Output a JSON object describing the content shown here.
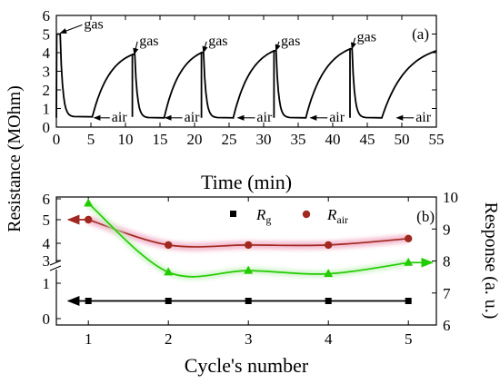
{
  "y_axis_title": "Resistance (MOhm)",
  "chart_data": [
    {
      "id": "a",
      "panel_label": "(a)",
      "type": "line",
      "xlabel": "Time (min)",
      "xlim": [
        0,
        55
      ],
      "ylim": [
        0,
        6
      ],
      "xticks": [
        "0",
        "5",
        "10",
        "15",
        "20",
        "25",
        "30",
        "35",
        "40",
        "45",
        "50",
        "55"
      ],
      "yticks": [
        "0",
        "1",
        "2",
        "3",
        "4",
        "5",
        "6"
      ],
      "color": "#000000",
      "cycles": [
        {
          "gas_on": 0.0,
          "peak": 5.0,
          "air_on": 0.55,
          "gas_next": 11.0,
          "base": 0.55
        },
        {
          "gas_on": 11.0,
          "peak": 3.9,
          "air_on": 11.35,
          "gas_next": 21.0,
          "base": 0.5
        },
        {
          "gas_on": 21.0,
          "peak": 4.0,
          "air_on": 21.3,
          "gas_next": 31.5,
          "base": 0.5
        },
        {
          "gas_on": 31.5,
          "peak": 4.1,
          "air_on": 31.8,
          "gas_next": 42.5,
          "base": 0.5
        },
        {
          "gas_on": 42.5,
          "peak": 4.2,
          "air_on": 42.8,
          "gas_next": 55.0,
          "base": 0.5,
          "peak_end": 4.1
        }
      ],
      "annotations": [
        {
          "text": "gas",
          "x": 0.3,
          "y": 5.05,
          "tx": 4.0,
          "ty": 5.3
        },
        {
          "text": "gas",
          "x": 11.0,
          "y": 3.9,
          "tx": 12.0,
          "ty": 4.4
        },
        {
          "text": "gas",
          "x": 21.0,
          "y": 4.0,
          "tx": 22.0,
          "ty": 4.4
        },
        {
          "text": "gas",
          "x": 31.5,
          "y": 4.1,
          "tx": 32.5,
          "ty": 4.4
        },
        {
          "text": "gas",
          "x": 42.5,
          "y": 4.2,
          "tx": 43.5,
          "ty": 4.6
        },
        {
          "text": "air",
          "x": 5.2,
          "y": 0.5,
          "tx": 8.0,
          "ty": 0.3
        },
        {
          "text": "air",
          "x": 15.5,
          "y": 0.5,
          "tx": 18.5,
          "ty": 0.3
        },
        {
          "text": "air",
          "x": 26.0,
          "y": 0.5,
          "tx": 29.0,
          "ty": 0.3
        },
        {
          "text": "air",
          "x": 36.5,
          "y": 0.5,
          "tx": 39.5,
          "ty": 0.3
        },
        {
          "text": "air",
          "x": 49.0,
          "y": 0.5,
          "tx": 52.0,
          "ty": 0.3
        }
      ]
    },
    {
      "id": "b",
      "panel_label": "(b)",
      "type": "line",
      "xlabel": "Cycle's number",
      "ylabel_right": "Response (a. u.)",
      "xlim": [
        0.6,
        5.35
      ],
      "xticks": [
        "1",
        "2",
        "3",
        "4",
        "5"
      ],
      "yticks_left": [
        "0",
        "1",
        "3",
        "4",
        "5",
        "6"
      ],
      "yticks_right": [
        "6",
        "7",
        "8",
        "9",
        "10"
      ],
      "ylim_right": [
        6,
        10
      ],
      "axis_break": true,
      "legend_position": "top",
      "series": [
        {
          "name_main": "R",
          "name_sub": "g",
          "marker": "square",
          "color": "#000000",
          "x": [
            1,
            2,
            3,
            4,
            5
          ],
          "y": [
            0.5,
            0.5,
            0.5,
            0.5,
            0.5
          ]
        },
        {
          "name_main": "R",
          "name_sub": "air",
          "marker": "circle",
          "color": "#a0281e",
          "x": [
            1,
            2,
            3,
            4,
            5
          ],
          "y": [
            5.0,
            3.9,
            3.9,
            3.9,
            4.2
          ]
        },
        {
          "axis": "right",
          "marker": "triangle",
          "color": "#22cc00",
          "x": [
            1,
            2,
            3,
            4,
            5
          ],
          "y": [
            9.8,
            7.65,
            7.7,
            7.6,
            7.95
          ]
        }
      ]
    }
  ]
}
